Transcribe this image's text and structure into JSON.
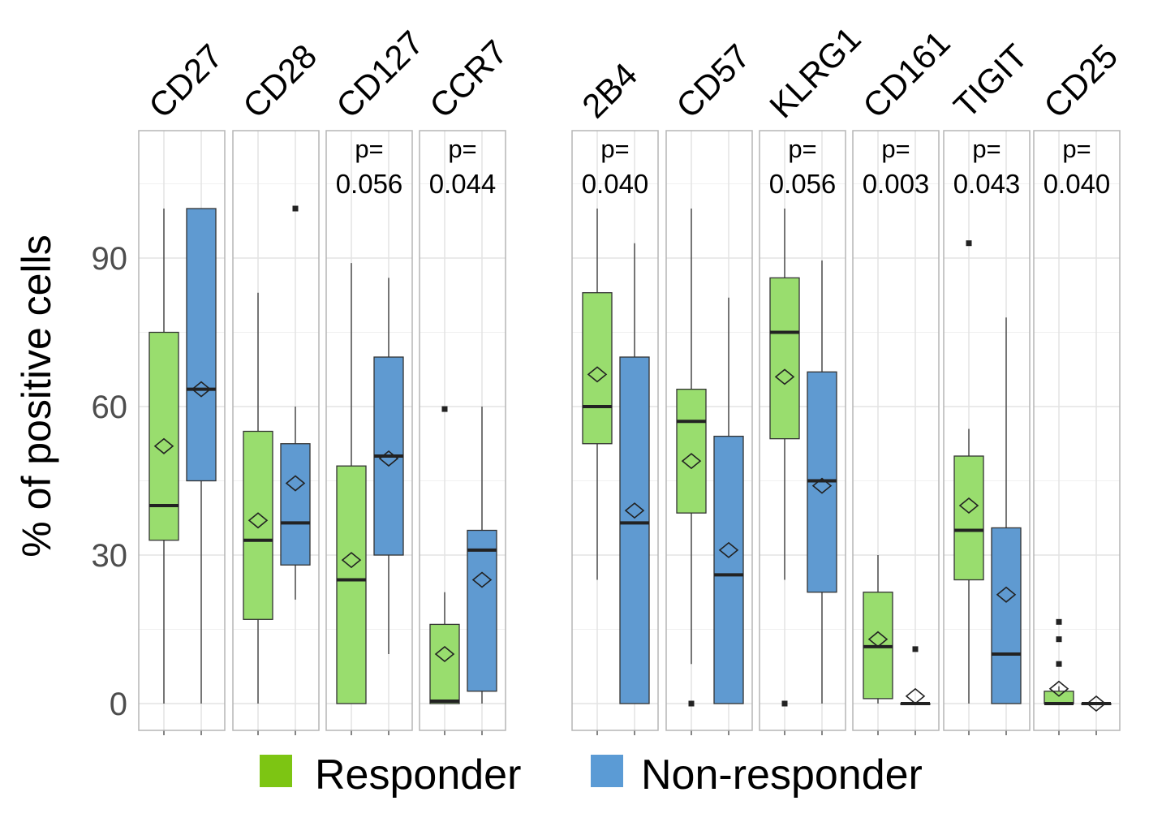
{
  "chart_data": {
    "type": "box",
    "title": "",
    "xlabel": "",
    "ylabel": "% of positive cells",
    "ylim": [
      -5,
      112
    ],
    "yticks": [
      0,
      30,
      60,
      90
    ],
    "grid": true,
    "legend_position": "bottom",
    "series": [
      {
        "name": "Responder",
        "color": "#99dd6e"
      },
      {
        "name": "Non-responder",
        "color": "#5f9ad1"
      }
    ],
    "panels": [
      {
        "marker": "CD27",
        "p_label": "",
        "responder": {
          "whisker_low": 0,
          "q1": 33,
          "median": 40,
          "q3": 75,
          "whisker_high": 100,
          "mean": 52,
          "outliers": []
        },
        "non_responder": {
          "whisker_low": 0,
          "q1": 45,
          "median": 63.5,
          "q3": 100,
          "whisker_high": 100,
          "mean": 63.5,
          "outliers": []
        }
      },
      {
        "marker": "CD28",
        "p_label": "",
        "responder": {
          "whisker_low": 0,
          "q1": 17,
          "median": 33,
          "q3": 55,
          "whisker_high": 83,
          "mean": 37,
          "outliers": []
        },
        "non_responder": {
          "whisker_low": 21,
          "q1": 28,
          "median": 36.5,
          "q3": 52.5,
          "whisker_high": 60,
          "mean": 44.5,
          "outliers": [
            100
          ]
        }
      },
      {
        "marker": "CD127",
        "p_label": "p= 0.056",
        "responder": {
          "whisker_low": 0,
          "q1": 0,
          "median": 25,
          "q3": 48,
          "whisker_high": 89,
          "mean": 29,
          "outliers": []
        },
        "non_responder": {
          "whisker_low": 10,
          "q1": 30,
          "median": 50,
          "q3": 70,
          "whisker_high": 86,
          "mean": 49.5,
          "outliers": []
        }
      },
      {
        "marker": "CCR7",
        "p_label": "p= 0.044",
        "responder": {
          "whisker_low": 0,
          "q1": 0,
          "median": 0.5,
          "q3": 16,
          "whisker_high": 22.5,
          "mean": 10,
          "outliers": [
            59.5
          ]
        },
        "non_responder": {
          "whisker_low": 0,
          "q1": 2.5,
          "median": 31,
          "q3": 35,
          "whisker_high": 60,
          "mean": 25,
          "outliers": []
        }
      },
      {
        "marker": "2B4",
        "p_label": "p= 0.040",
        "responder": {
          "whisker_low": 25,
          "q1": 52.5,
          "median": 60,
          "q3": 83,
          "whisker_high": 100,
          "mean": 66.5,
          "outliers": []
        },
        "non_responder": {
          "whisker_low": 0,
          "q1": 0,
          "median": 36.5,
          "q3": 70,
          "whisker_high": 93,
          "mean": 39,
          "outliers": []
        }
      },
      {
        "marker": "CD57",
        "p_label": "",
        "responder": {
          "whisker_low": 8,
          "q1": 38.5,
          "median": 57,
          "q3": 63.5,
          "whisker_high": 100,
          "mean": 49,
          "outliers": [
            0
          ]
        },
        "non_responder": {
          "whisker_low": 0,
          "q1": 0,
          "median": 26,
          "q3": 54,
          "whisker_high": 82,
          "mean": 31,
          "outliers": []
        }
      },
      {
        "marker": "KLRG1",
        "p_label": "p= 0.056",
        "responder": {
          "whisker_low": 25,
          "q1": 53.5,
          "median": 75,
          "q3": 86,
          "whisker_high": 100,
          "mean": 66,
          "outliers": [
            0
          ]
        },
        "non_responder": {
          "whisker_low": 0,
          "q1": 22.5,
          "median": 45,
          "q3": 67,
          "whisker_high": 89.5,
          "mean": 44,
          "outliers": []
        }
      },
      {
        "marker": "CD161",
        "p_label": "p= 0.003",
        "responder": {
          "whisker_low": 0,
          "q1": 1,
          "median": 11.5,
          "q3": 22.5,
          "whisker_high": 30,
          "mean": 13,
          "outliers": []
        },
        "non_responder": {
          "whisker_low": 0,
          "q1": 0,
          "median": 0,
          "q3": 0,
          "whisker_high": 0,
          "mean": 1.5,
          "outliers": [
            11
          ]
        }
      },
      {
        "marker": "TIGIT",
        "p_label": "p= 0.043",
        "responder": {
          "whisker_low": 0,
          "q1": 25,
          "median": 35,
          "q3": 50,
          "whisker_high": 55.5,
          "mean": 40,
          "outliers": [
            93
          ]
        },
        "non_responder": {
          "whisker_low": 0,
          "q1": 0,
          "median": 10,
          "q3": 35.5,
          "whisker_high": 78,
          "mean": 22,
          "outliers": []
        }
      },
      {
        "marker": "CD25",
        "p_label": "p= 0.040",
        "responder": {
          "whisker_low": 0,
          "q1": 0,
          "median": 0,
          "q3": 2.5,
          "whisker_high": 3.5,
          "mean": 3,
          "outliers": [
            8,
            13,
            16.5
          ]
        },
        "non_responder": {
          "whisker_low": 0,
          "q1": 0,
          "median": 0,
          "q3": 0,
          "whisker_high": 0,
          "mean": 0,
          "outliers": []
        }
      }
    ]
  },
  "legend": {
    "responder_label": "Responder",
    "non_responder_label": "Non-responder"
  }
}
